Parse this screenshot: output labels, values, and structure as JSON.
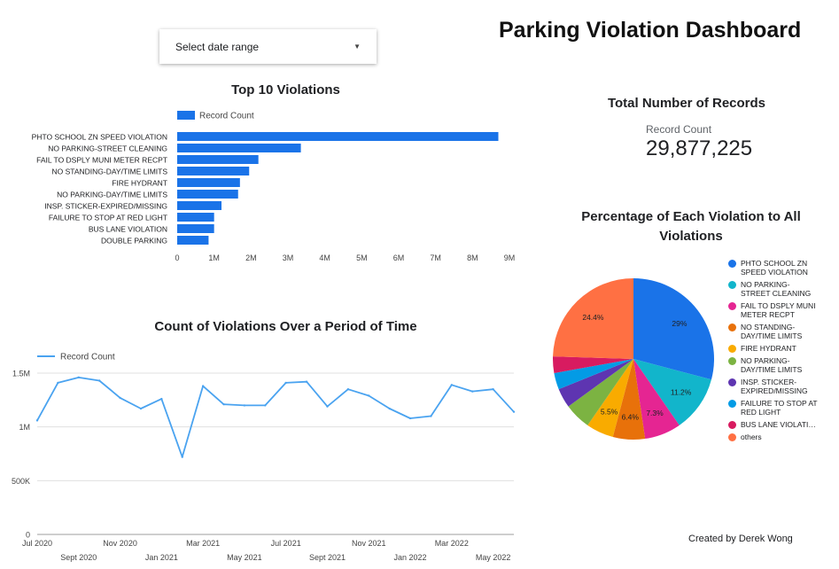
{
  "title": "Parking Violation Dashboard",
  "date_range": {
    "placeholder": "Select date range",
    "icon": "caret-down-icon"
  },
  "credit": "Created by Derek Wong",
  "scorecard": {
    "title": "Total Number of Records",
    "label": "Record Count",
    "value": "29,877,225"
  },
  "colors": {
    "bar": "#1a73e8",
    "line": "#4aa3f0",
    "grid": "#e0e0e0"
  },
  "chart_data": [
    {
      "type": "bar",
      "orientation": "horizontal",
      "title": "Top 10 Violations",
      "legend": "Record Count",
      "categories": [
        "PHTO SCHOOL ZN SPEED VIOLATION",
        "NO PARKING-STREET CLEANING",
        "FAIL TO DSPLY MUNI METER RECPT",
        "NO STANDING-DAY/TIME LIMITS",
        "FIRE HYDRANT",
        "NO PARKING-DAY/TIME LIMITS",
        "INSP. STICKER-EXPIRED/MISSING",
        "FAILURE TO STOP AT RED LIGHT",
        "BUS LANE VIOLATION",
        "DOUBLE PARKING"
      ],
      "values": [
        8700000,
        3350000,
        2200000,
        1950000,
        1700000,
        1650000,
        1200000,
        1000000,
        1000000,
        850000
      ],
      "xlim": [
        0,
        9000000
      ],
      "xticks": [
        0,
        1000000,
        2000000,
        3000000,
        4000000,
        5000000,
        6000000,
        7000000,
        8000000,
        9000000
      ],
      "xtick_labels": [
        "0",
        "1M",
        "2M",
        "3M",
        "4M",
        "5M",
        "6M",
        "7M",
        "8M",
        "9M"
      ]
    },
    {
      "type": "line",
      "title": "Count of Violations Over a Period of Time",
      "legend": "Record Count",
      "x": [
        "2020-07",
        "2020-08",
        "2020-09",
        "2020-10",
        "2020-11",
        "2020-12",
        "2021-01",
        "2021-02",
        "2021-03",
        "2021-04",
        "2021-05",
        "2021-06",
        "2021-07",
        "2021-08",
        "2021-09",
        "2021-10",
        "2021-11",
        "2021-12",
        "2022-01",
        "2022-02",
        "2022-03",
        "2022-04",
        "2022-05",
        "2022-06"
      ],
      "values": [
        1060000,
        1410000,
        1460000,
        1430000,
        1270000,
        1170000,
        1260000,
        720000,
        1380000,
        1210000,
        1200000,
        1200000,
        1410000,
        1420000,
        1190000,
        1350000,
        1290000,
        1170000,
        1080000,
        1100000,
        1390000,
        1330000,
        1350000,
        1140000
      ],
      "ylim": [
        0,
        1500000
      ],
      "yticks": [
        0,
        500000,
        1000000,
        1500000
      ],
      "ytick_labels": [
        "0",
        "500K",
        "1M",
        "1.5M"
      ],
      "xtick_labels_top": [
        {
          "index": 0,
          "label": "Jul 2020"
        },
        {
          "index": 4,
          "label": "Nov 2020"
        },
        {
          "index": 8,
          "label": "Mar 2021"
        },
        {
          "index": 12,
          "label": "Jul 2021"
        },
        {
          "index": 16,
          "label": "Nov 2021"
        },
        {
          "index": 20,
          "label": "Mar 2022"
        }
      ],
      "xtick_labels_bottom": [
        {
          "index": 2,
          "label": "Sept 2020"
        },
        {
          "index": 6,
          "label": "Jan 2021"
        },
        {
          "index": 10,
          "label": "May 2021"
        },
        {
          "index": 14,
          "label": "Sept 2021"
        },
        {
          "index": 18,
          "label": "Jan 2022"
        },
        {
          "index": 22,
          "label": "May 2022"
        }
      ]
    },
    {
      "type": "pie",
      "title": "Percentage of Each Violation to All Violations",
      "labels": [
        "PHTO SCHOOL ZN SPEED VIOLATION",
        "NO PARKING-STREET CLEANING",
        "FAIL TO DSPLY MUNI METER RECPT",
        "NO STANDING-DAY/TIME LIMITS",
        "FIRE HYDRANT",
        "NO PARKING-DAY/TIME LIMITS",
        "INSP. STICKER-EXPIRED/MISSING",
        "FAILURE TO STOP AT RED LIGHT",
        "BUS LANE VIOLATI…",
        "others"
      ],
      "values": [
        29,
        11.2,
        7.3,
        6.4,
        5.5,
        5.3,
        3.9,
        3.3,
        3.3,
        24.4
      ],
      "data_labels": [
        "29%",
        "11.2%",
        "7.3%",
        "6.4%",
        "5.5%",
        "",
        "",
        "",
        "",
        "24.4%"
      ],
      "colors": [
        "#1a73e8",
        "#12b5cb",
        "#e52592",
        "#e8710a",
        "#f9ab00",
        "#7cb342",
        "#5e35b1",
        "#039be5",
        "#d81b60",
        "#ff7043"
      ]
    }
  ]
}
